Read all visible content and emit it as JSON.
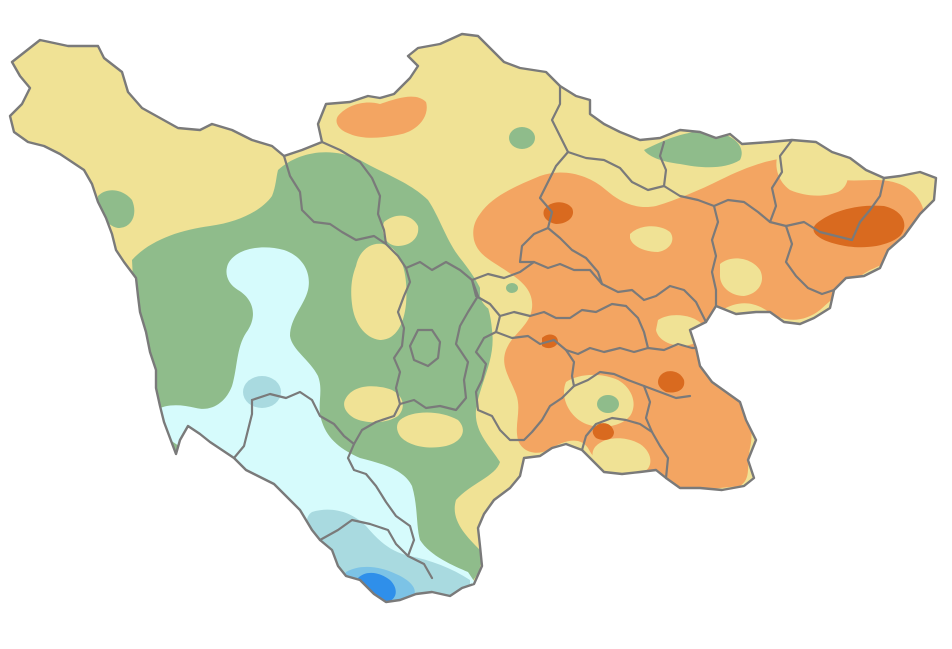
{
  "map": {
    "colors": {
      "yellow": "#f0e295",
      "green": "#8fbc8b",
      "orange": "#f3a562",
      "dark_orange": "#d96a1f",
      "cyan": "#d6fbfc",
      "light_blue": "#a9dae0",
      "mid_blue": "#7cc3e6",
      "blue": "#2f8fea",
      "border": "#7a7a7a"
    }
  }
}
